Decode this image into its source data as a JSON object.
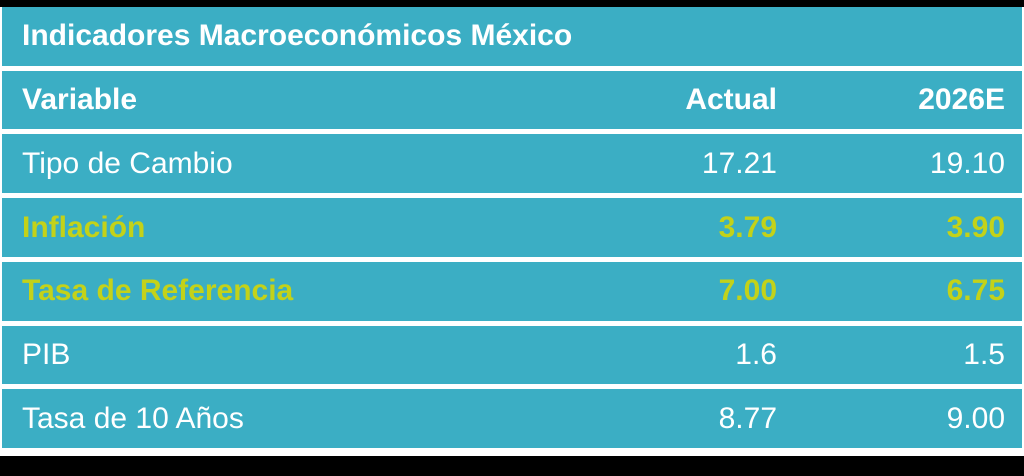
{
  "table": {
    "title": "Indicadores Macroeconómicos México",
    "columns": {
      "variable": "Variable",
      "actual": "Actual",
      "e2026": "2026E"
    },
    "rows": [
      {
        "variable": "Tipo de Cambio",
        "actual": "17.21",
        "e2026": "19.10",
        "highlight": false
      },
      {
        "variable": "Inflación",
        "actual": "3.79",
        "e2026": "3.90",
        "highlight": true
      },
      {
        "variable": "Tasa de Referencia",
        "actual": "7.00",
        "e2026": "6.75",
        "highlight": true
      },
      {
        "variable": "PIB",
        "actual": "1.6",
        "e2026": "1.5",
        "highlight": false
      },
      {
        "variable": "Tasa de 10 Años",
        "actual": "8.77",
        "e2026": "9.00",
        "highlight": false
      }
    ],
    "colors": {
      "cell_background": "#3BAEC4",
      "text": "#FFFFFF",
      "highlight_text": "#C3D219",
      "separator": "#FFFFFF",
      "frame": "#000000"
    }
  },
  "chart_data": {
    "type": "table",
    "title": "Indicadores Macroeconómicos México",
    "columns": [
      "Variable",
      "Actual",
      "2026E"
    ],
    "rows": [
      [
        "Tipo de Cambio",
        17.21,
        19.1
      ],
      [
        "Inflación",
        3.79,
        3.9
      ],
      [
        "Tasa de Referencia",
        7.0,
        6.75
      ],
      [
        "PIB",
        1.6,
        1.5
      ],
      [
        "Tasa de 10 Años",
        8.77,
        9.0
      ]
    ],
    "highlighted_rows": [
      "Inflación",
      "Tasa de Referencia"
    ],
    "layout": {
      "value_alignment": "right",
      "header_style": "bold",
      "grid": "horizontal-white-separators"
    }
  }
}
